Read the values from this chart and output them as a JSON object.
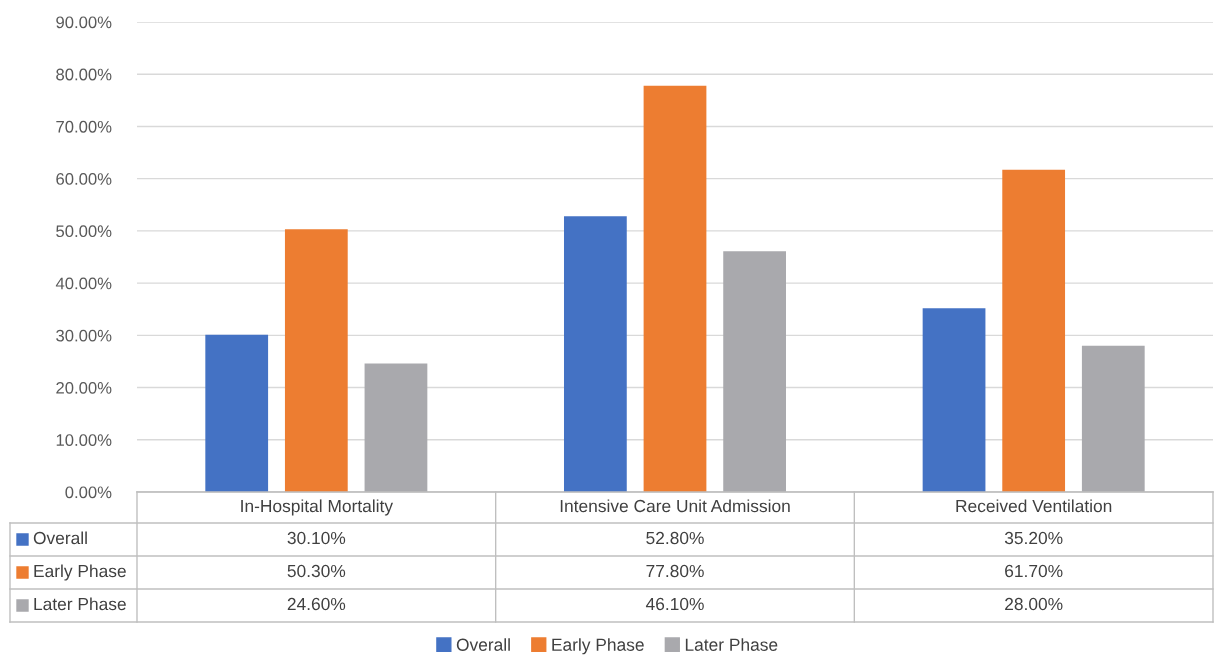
{
  "chart_data": {
    "type": "bar",
    "categories": [
      "In-Hospital Mortality",
      "Intensive Care Unit Admission",
      "Received Ventilation"
    ],
    "series": [
      {
        "name": "Overall",
        "color": "#4472c4",
        "values": [
          30.1,
          52.8,
          35.2
        ],
        "value_labels": [
          "30.10%",
          "52.80%",
          "35.20%"
        ]
      },
      {
        "name": "Early Phase",
        "color": "#ed7d31",
        "values": [
          50.3,
          77.8,
          61.7
        ],
        "value_labels": [
          "50.30%",
          "77.80%",
          "61.70%"
        ]
      },
      {
        "name": "Later Phase",
        "color": "#a9a9ad",
        "values": [
          24.6,
          46.1,
          28.0
        ],
        "value_labels": [
          "24.60%",
          "46.10%",
          "28.00%"
        ]
      }
    ],
    "ylim": [
      0,
      90
    ],
    "yticks": [
      {
        "value": 0,
        "label": "0.00%"
      },
      {
        "value": 10,
        "label": "10.00%"
      },
      {
        "value": 20,
        "label": "20.00%"
      },
      {
        "value": 30,
        "label": "30.00%"
      },
      {
        "value": 40,
        "label": "40.00%"
      },
      {
        "value": 50,
        "label": "50.00%"
      },
      {
        "value": 60,
        "label": "60.00%"
      },
      {
        "value": 70,
        "label": "70.00%"
      },
      {
        "value": 80,
        "label": "80.00%"
      },
      {
        "value": 90,
        "label": "90.00%"
      }
    ],
    "grid": "y",
    "legend": "bottom"
  }
}
